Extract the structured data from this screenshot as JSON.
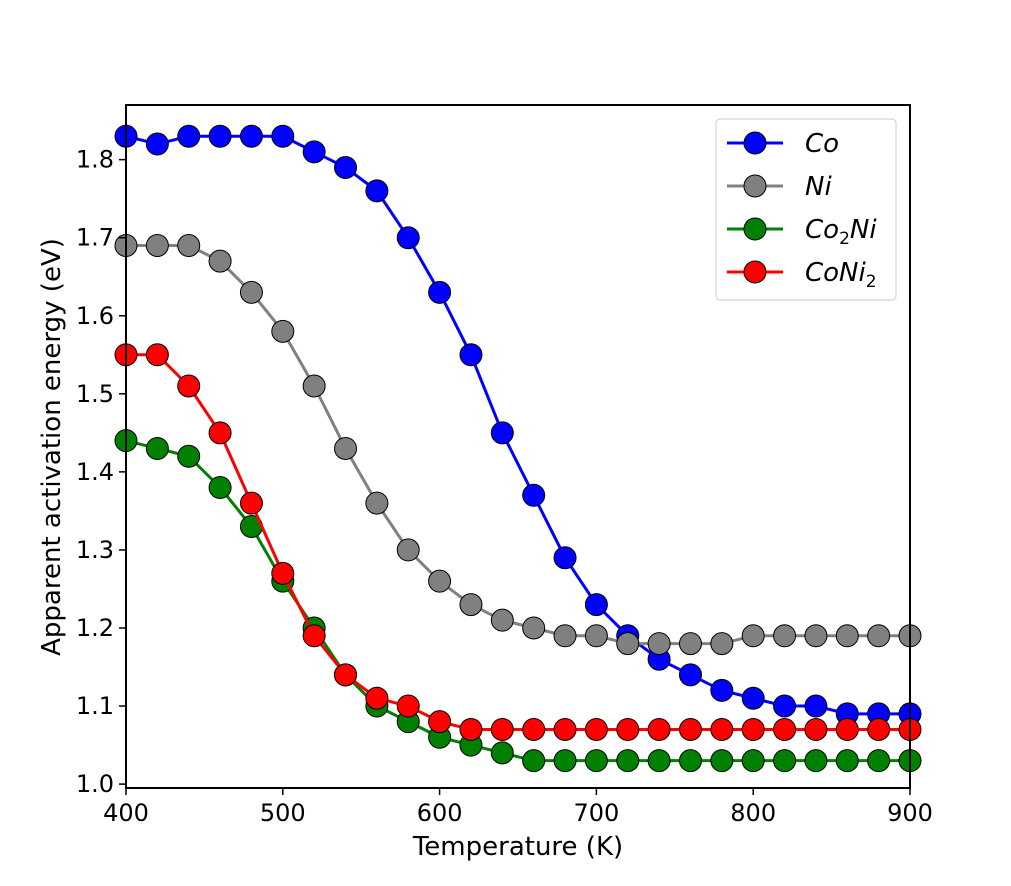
{
  "chart_data": {
    "type": "line",
    "xlabel": "Temperature (K)",
    "ylabel": "Apparent activation energy (eV)",
    "xlim": [
      400,
      900
    ],
    "ylim": [
      0.995,
      1.87
    ],
    "xticks": [
      "400",
      "500",
      "600",
      "700",
      "800",
      "900"
    ],
    "yticks": [
      "1.0",
      "1.1",
      "1.2",
      "1.3",
      "1.4",
      "1.5",
      "1.6",
      "1.7",
      "1.8"
    ],
    "grid": false,
    "legend_position": "top-right",
    "x": [
      400,
      420,
      440,
      460,
      480,
      500,
      520,
      540,
      560,
      580,
      600,
      620,
      640,
      660,
      680,
      700,
      720,
      740,
      760,
      780,
      800,
      820,
      840,
      860,
      880,
      900
    ],
    "series": [
      {
        "name": "Co",
        "color": "#0000ff",
        "values": [
          1.83,
          1.82,
          1.83,
          1.83,
          1.83,
          1.83,
          1.81,
          1.79,
          1.76,
          1.7,
          1.63,
          1.55,
          1.45,
          1.37,
          1.29,
          1.23,
          1.19,
          1.16,
          1.14,
          1.12,
          1.11,
          1.1,
          1.1,
          1.09,
          1.09,
          1.09
        ]
      },
      {
        "name": "Ni",
        "color": "#808080",
        "values": [
          1.69,
          1.69,
          1.69,
          1.67,
          1.63,
          1.58,
          1.51,
          1.43,
          1.36,
          1.3,
          1.26,
          1.23,
          1.21,
          1.2,
          1.19,
          1.19,
          1.18,
          1.18,
          1.18,
          1.18,
          1.19,
          1.19,
          1.19,
          1.19,
          1.19,
          1.19
        ]
      },
      {
        "name": "Co",
        "name_sub": "2",
        "name_tail": "Ni",
        "color": "#008000",
        "values": [
          1.44,
          1.43,
          1.42,
          1.38,
          1.33,
          1.26,
          1.2,
          1.14,
          1.1,
          1.08,
          1.06,
          1.05,
          1.04,
          1.03,
          1.03,
          1.03,
          1.03,
          1.03,
          1.03,
          1.03,
          1.03,
          1.03,
          1.03,
          1.03,
          1.03,
          1.03
        ]
      },
      {
        "name": "CoNi",
        "name_sub": "2",
        "name_tail": "",
        "color": "#ff0000",
        "values": [
          1.55,
          1.55,
          1.51,
          1.45,
          1.36,
          1.27,
          1.19,
          1.14,
          1.11,
          1.1,
          1.08,
          1.07,
          1.07,
          1.07,
          1.07,
          1.07,
          1.07,
          1.07,
          1.07,
          1.07,
          1.07,
          1.07,
          1.07,
          1.07,
          1.07,
          1.07
        ]
      }
    ]
  }
}
